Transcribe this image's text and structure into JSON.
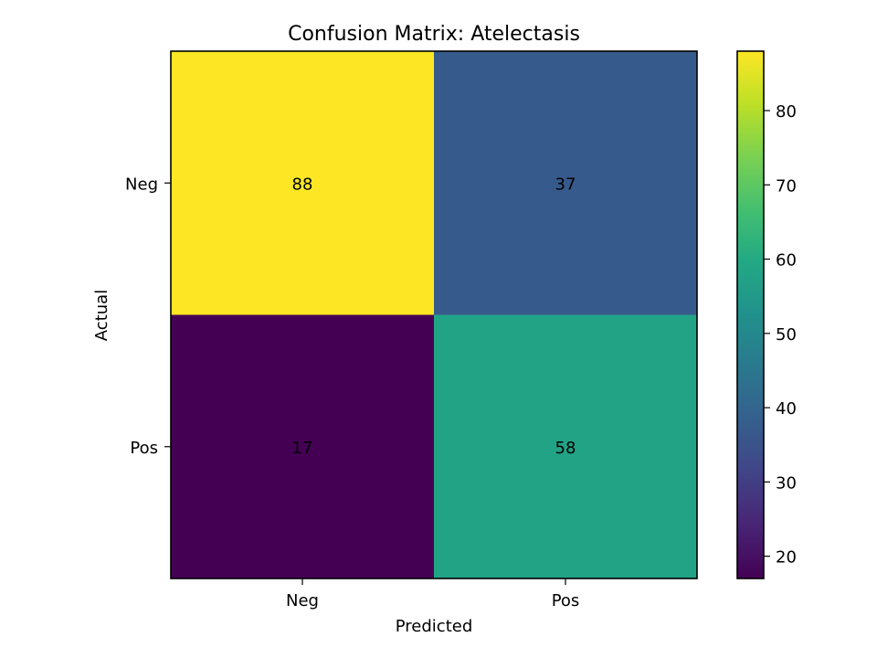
{
  "chart_data": {
    "type": "heatmap",
    "title": "Confusion Matrix: Atelectasis",
    "xlabel": "Predicted",
    "ylabel": "Actual",
    "x_categories": [
      "Neg",
      "Pos"
    ],
    "y_categories": [
      "Neg",
      "Pos"
    ],
    "values": [
      [
        88,
        37
      ],
      [
        17,
        58
      ]
    ],
    "colormap": "viridis",
    "color_range": [
      17,
      88
    ],
    "colorbar_ticks": [
      20,
      30,
      40,
      50,
      60,
      70,
      80
    ],
    "colorbar": true,
    "grid": false
  }
}
